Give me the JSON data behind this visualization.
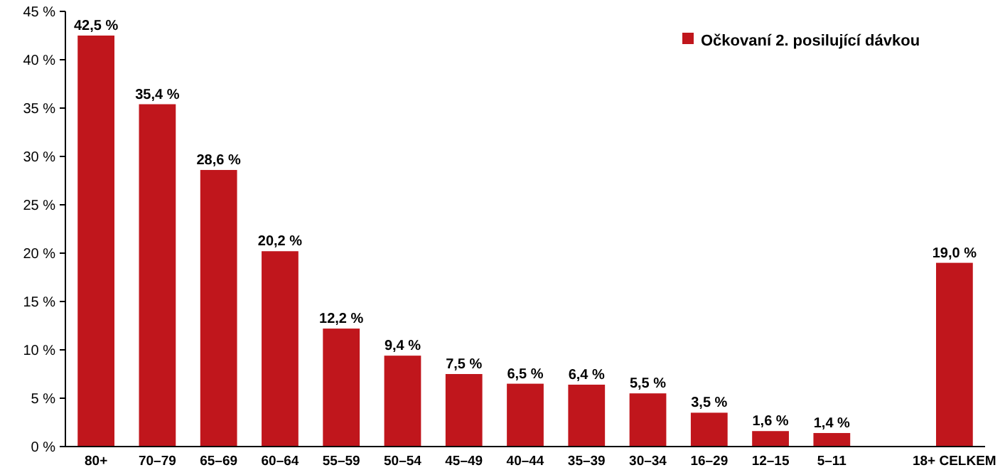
{
  "chart_data": {
    "type": "bar",
    "categories": [
      "80+",
      "70–79",
      "65–69",
      "60–64",
      "55–59",
      "50–54",
      "45–49",
      "40–44",
      "35–39",
      "30–34",
      "16–29",
      "12–15",
      "5–11",
      null,
      "18+ CELKEM"
    ],
    "series": [
      {
        "name": "Očkovaní 2. posilující dávkou",
        "color": "#c0161c",
        "values": [
          42.5,
          35.4,
          28.6,
          20.2,
          12.2,
          9.4,
          7.5,
          6.5,
          6.4,
          5.5,
          3.5,
          1.6,
          1.4,
          null,
          19.0
        ],
        "value_labels": [
          "42,5 %",
          "35,4 %",
          "28,6 %",
          "20,2 %",
          "12,2 %",
          "9,4 %",
          "7,5 %",
          "6,5 %",
          "6,4 %",
          "5,5 %",
          "3,5 %",
          "1,6 %",
          "1,4 %",
          null,
          "19,0 %"
        ]
      }
    ],
    "ylim": [
      0,
      45
    ],
    "yticks": [
      {
        "value": 0,
        "label": "0 %"
      },
      {
        "value": 5,
        "label": "5 %"
      },
      {
        "value": 10,
        "label": "10 %"
      },
      {
        "value": 15,
        "label": "15 %"
      },
      {
        "value": 20,
        "label": "20 %"
      },
      {
        "value": 25,
        "label": "25 %"
      },
      {
        "value": 30,
        "label": "30 %"
      },
      {
        "value": 35,
        "label": "35 %"
      },
      {
        "value": 40,
        "label": "40 %"
      },
      {
        "value": 45,
        "label": "45 %"
      }
    ],
    "legend": "top right",
    "grid": false
  }
}
